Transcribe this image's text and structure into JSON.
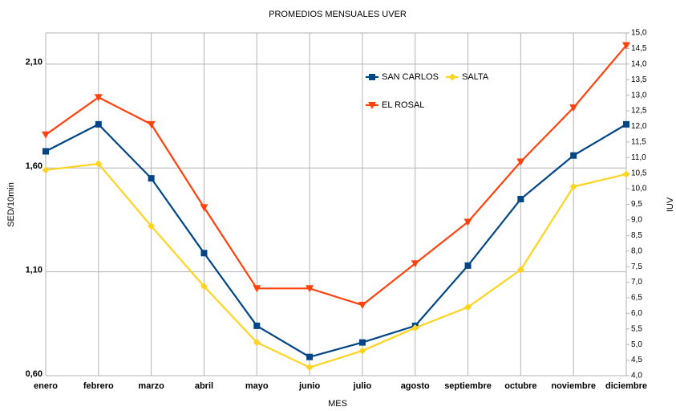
{
  "chart_data": {
    "type": "line",
    "title": "PROMEDIOS MENSUALES UVER",
    "xlabel": "MES",
    "ylabel": "SED/10min",
    "y2label": "IUV",
    "categories": [
      "enero",
      "febrero",
      "marzo",
      "abril",
      "mayo",
      "junio",
      "julio",
      "agosto",
      "septiembre",
      "octubre",
      "noviembre",
      "diciembre"
    ],
    "series": [
      {
        "name": "SAN CARLOS",
        "color": "#004586",
        "marker": "square",
        "values": [
          1.68,
          1.81,
          1.55,
          1.19,
          0.84,
          0.69,
          0.76,
          0.84,
          1.13,
          1.45,
          1.66,
          1.81
        ]
      },
      {
        "name": "SALTA",
        "color": "#ffd320",
        "marker": "diamond",
        "values": [
          1.59,
          1.62,
          1.32,
          1.03,
          0.76,
          0.64,
          0.72,
          0.83,
          0.93,
          1.11,
          1.51,
          1.57
        ]
      },
      {
        "name": "EL ROSAL",
        "color": "#ff420e",
        "marker": "triangle-down",
        "values": [
          1.76,
          1.94,
          1.81,
          1.41,
          1.02,
          1.02,
          0.94,
          1.14,
          1.34,
          1.63,
          1.89,
          2.19
        ]
      }
    ],
    "ylim": [
      0.6,
      2.25
    ],
    "yticks": [
      {
        "value": 0.6,
        "label": "0,60"
      },
      {
        "value": 1.1,
        "label": "1,10"
      },
      {
        "value": 1.6,
        "label": "1,60"
      },
      {
        "value": 2.1,
        "label": "2,10"
      }
    ],
    "y2lim": [
      4,
      15
    ],
    "y2ticks": [
      {
        "value": 4,
        "label": "4,0"
      },
      {
        "value": 4.5,
        "label": "4,5"
      },
      {
        "value": 5,
        "label": "5,0"
      },
      {
        "value": 5.5,
        "label": "5,5"
      },
      {
        "value": 6,
        "label": "6,0"
      },
      {
        "value": 6.5,
        "label": "6,5"
      },
      {
        "value": 7,
        "label": "7,0"
      },
      {
        "value": 7.5,
        "label": "7,5"
      },
      {
        "value": 8,
        "label": "8,0"
      },
      {
        "value": 8.5,
        "label": "8,5"
      },
      {
        "value": 9,
        "label": "9,0"
      },
      {
        "value": 9.5,
        "label": "9,5"
      },
      {
        "value": 10,
        "label": "10,0"
      },
      {
        "value": 10.5,
        "label": "10,5"
      },
      {
        "value": 11,
        "label": "11,0"
      },
      {
        "value": 11.5,
        "label": "11,5"
      },
      {
        "value": 12,
        "label": "12,0"
      },
      {
        "value": 12.5,
        "label": "12,5"
      },
      {
        "value": 13,
        "label": "13,0"
      },
      {
        "value": 13.5,
        "label": "13,5"
      },
      {
        "value": 14,
        "label": "14,0"
      },
      {
        "value": 14.5,
        "label": "14,5"
      },
      {
        "value": 15,
        "label": "15,0"
      }
    ],
    "grid": true
  }
}
